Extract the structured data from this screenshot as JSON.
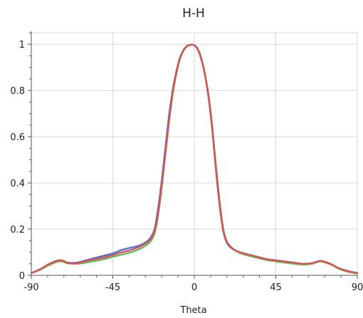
{
  "chart_data": {
    "type": "line",
    "title": "H-H",
    "xlabel": "Theta",
    "ylabel": "",
    "xlim": [
      -90,
      90
    ],
    "ylim": [
      0,
      1.05
    ],
    "grid": true,
    "legend": "none",
    "x_ticks": [
      "-90",
      "-45",
      "0",
      "45",
      "90"
    ],
    "y_ticks": [
      "0",
      "0.2",
      "0.4",
      "0.6",
      "0.8",
      "1"
    ],
    "x_tick_values": [
      -90,
      -45,
      0,
      45,
      90
    ],
    "y_tick_values": [
      0,
      0.2,
      0.4,
      0.6,
      0.8,
      1
    ],
    "x": [
      -90,
      -85,
      -80,
      -75,
      -72,
      -70,
      -65,
      -60,
      -55,
      -50,
      -45,
      -40,
      -35,
      -30,
      -25,
      -22,
      -20,
      -18,
      -16,
      -14,
      -12,
      -10,
      -8,
      -6,
      -4,
      -2,
      0,
      2,
      4,
      6,
      8,
      10,
      12,
      14,
      16,
      18,
      20,
      22,
      25,
      30,
      35,
      40,
      45,
      50,
      55,
      60,
      65,
      68,
      70,
      75,
      80,
      85,
      90
    ],
    "series": [
      {
        "color": "#5b6fd6",
        "values": [
          0.01,
          0.025,
          0.05,
          0.065,
          0.062,
          0.055,
          0.055,
          0.065,
          0.075,
          0.085,
          0.095,
          0.11,
          0.12,
          0.13,
          0.155,
          0.2,
          0.29,
          0.41,
          0.55,
          0.69,
          0.8,
          0.88,
          0.94,
          0.975,
          0.993,
          0.998,
          0.995,
          0.975,
          0.93,
          0.86,
          0.76,
          0.62,
          0.45,
          0.3,
          0.19,
          0.14,
          0.12,
          0.11,
          0.1,
          0.09,
          0.08,
          0.07,
          0.065,
          0.06,
          0.055,
          0.05,
          0.053,
          0.06,
          0.062,
          0.05,
          0.03,
          0.018,
          0.01
        ]
      },
      {
        "color": "#5cb85c",
        "values": [
          0.01,
          0.025,
          0.045,
          0.06,
          0.058,
          0.052,
          0.05,
          0.055,
          0.062,
          0.07,
          0.08,
          0.09,
          0.1,
          0.115,
          0.14,
          0.18,
          0.26,
          0.38,
          0.52,
          0.66,
          0.78,
          0.87,
          0.935,
          0.972,
          0.992,
          0.998,
          0.996,
          0.978,
          0.935,
          0.865,
          0.77,
          0.635,
          0.47,
          0.32,
          0.2,
          0.145,
          0.123,
          0.11,
          0.097,
          0.085,
          0.075,
          0.066,
          0.06,
          0.055,
          0.05,
          0.047,
          0.05,
          0.058,
          0.06,
          0.048,
          0.028,
          0.015,
          0.008
        ]
      },
      {
        "color": "#d9534f",
        "values": [
          0.01,
          0.027,
          0.05,
          0.065,
          0.062,
          0.054,
          0.053,
          0.062,
          0.07,
          0.078,
          0.088,
          0.1,
          0.11,
          0.125,
          0.15,
          0.19,
          0.27,
          0.39,
          0.53,
          0.67,
          0.79,
          0.875,
          0.938,
          0.973,
          0.992,
          0.998,
          0.996,
          0.978,
          0.935,
          0.865,
          0.77,
          0.63,
          0.46,
          0.31,
          0.195,
          0.145,
          0.125,
          0.112,
          0.1,
          0.09,
          0.08,
          0.07,
          0.065,
          0.06,
          0.055,
          0.05,
          0.053,
          0.06,
          0.062,
          0.05,
          0.03,
          0.018,
          0.01
        ]
      }
    ]
  }
}
